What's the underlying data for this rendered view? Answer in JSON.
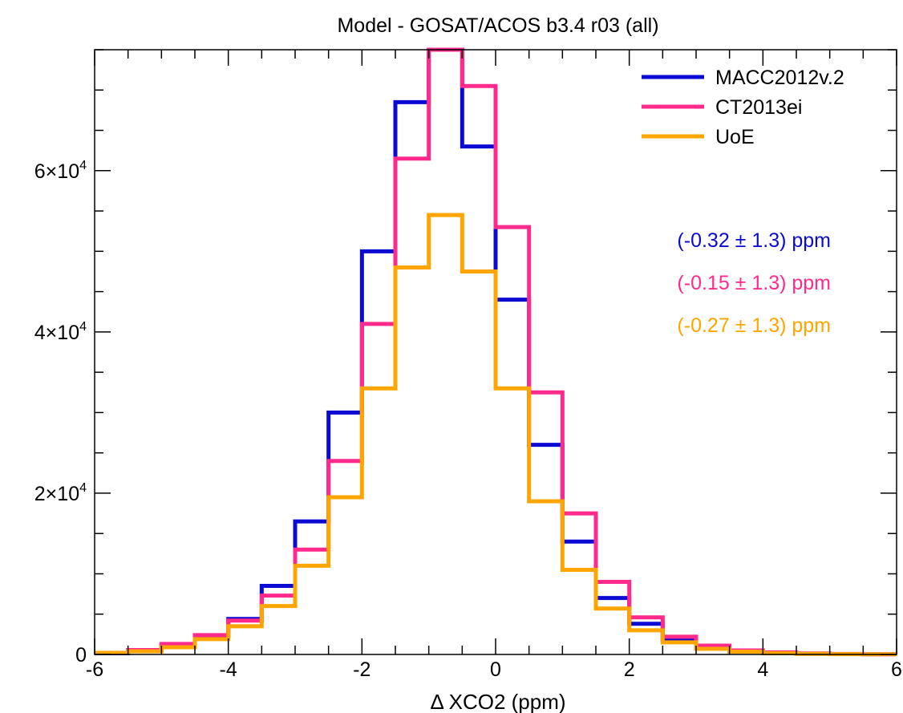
{
  "chart_data": {
    "type": "line",
    "title": "Model - GOSAT/ACOS b3.4 r03 (all)",
    "xlabel": "Δ XCO2 (ppm)",
    "ylabel": "",
    "xlim": [
      -6,
      6
    ],
    "ylim": [
      0,
      75000
    ],
    "step_style": "histogram",
    "bin_edges": [
      -6.0,
      -5.5,
      -5.0,
      -4.5,
      -4.0,
      -3.5,
      -3.0,
      -2.5,
      -2.0,
      -1.5,
      -1.0,
      -0.5,
      0.0,
      0.5,
      1.0,
      1.5,
      2.0,
      2.5,
      3.0,
      3.5,
      4.0,
      4.5,
      5.0,
      5.5,
      6.0
    ],
    "x_ticks": [
      "-6",
      "-4",
      "-2",
      "0",
      "2",
      "4",
      "6"
    ],
    "x_tick_values": [
      -6,
      -4,
      -2,
      0,
      2,
      4,
      6
    ],
    "y_ticks": [
      {
        "value": 0,
        "mantissa": "0",
        "exp": ""
      },
      {
        "value": 20000,
        "mantissa": "2×10",
        "exp": "4"
      },
      {
        "value": 40000,
        "mantissa": "4×10",
        "exp": "4"
      },
      {
        "value": 60000,
        "mantissa": "6×10",
        "exp": "4"
      }
    ],
    "legend_position": "top-right",
    "series": [
      {
        "name": "MACC2012v.2",
        "color": "#0a0ad2",
        "values": [
          150,
          450,
          1100,
          2300,
          4400,
          8500,
          16500,
          30000,
          50000,
          68500,
          75000,
          63000,
          44000,
          26000,
          14000,
          7000,
          3800,
          1800,
          900,
          400,
          200,
          100,
          50,
          20
        ]
      },
      {
        "name": "CT2013ei",
        "color": "#ff2a8c",
        "values": [
          200,
          550,
          1300,
          2400,
          4200,
          7300,
          13000,
          24000,
          41000,
          61500,
          75000,
          70500,
          53000,
          32500,
          17500,
          9000,
          4600,
          2200,
          1100,
          500,
          250,
          120,
          60,
          30
        ]
      },
      {
        "name": "UoE",
        "color": "#ffa500",
        "values": [
          200,
          400,
          900,
          1900,
          3500,
          6000,
          11000,
          19500,
          33000,
          48000,
          54500,
          47500,
          33000,
          19000,
          10500,
          5700,
          3000,
          1500,
          700,
          350,
          150,
          80,
          40,
          20
        ]
      }
    ],
    "annotations": [
      {
        "text": "(-0.32 ± 1.3) ppm",
        "color": "#0a0ad2"
      },
      {
        "text": "(-0.15 ± 1.3) ppm",
        "color": "#ff2a8c"
      },
      {
        "text": "(-0.27 ± 1.3) ppm",
        "color": "#ffa500"
      }
    ]
  }
}
